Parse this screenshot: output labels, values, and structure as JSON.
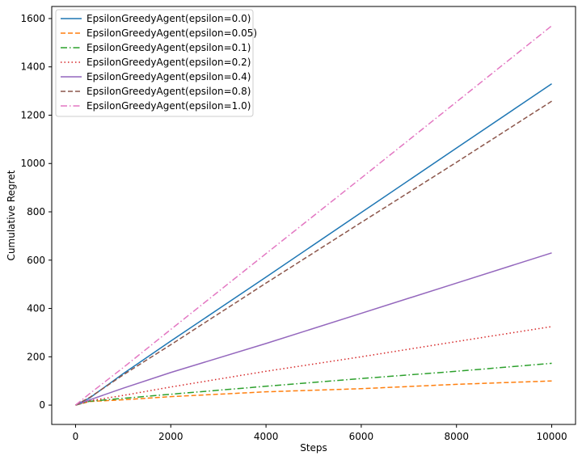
{
  "chart_data": {
    "type": "line",
    "title": "",
    "xlabel": "Steps",
    "ylabel": "Cumulative Regret",
    "xlim": [
      -500,
      10500
    ],
    "ylim": [
      -80,
      1650
    ],
    "x_ticks": [
      0,
      2000,
      4000,
      6000,
      8000,
      10000
    ],
    "y_ticks": [
      0,
      200,
      400,
      600,
      800,
      1000,
      1200,
      1400,
      1600
    ],
    "grid": false,
    "legend_position": "top-left",
    "series": [
      {
        "name": "EpsilonGreedyAgent(epsilon=0.0)",
        "color": "#1f77b4",
        "style": "solid",
        "x": [
          0,
          300,
          1000,
          2000,
          4000,
          6000,
          8000,
          10000
        ],
        "y": [
          0,
          30,
          130,
          265,
          530,
          797,
          1064,
          1330
        ]
      },
      {
        "name": "EpsilonGreedyAgent(epsilon=0.05)",
        "color": "#ff7f0e",
        "style": "dashed",
        "x": [
          0,
          300,
          1000,
          2000,
          4000,
          6000,
          8000,
          10000
        ],
        "y": [
          0,
          15,
          22,
          35,
          55,
          68,
          86,
          100
        ]
      },
      {
        "name": "EpsilonGreedyAgent(epsilon=0.1)",
        "color": "#2ca02c",
        "style": "dashdot",
        "x": [
          0,
          300,
          1000,
          2000,
          4000,
          6000,
          8000,
          10000
        ],
        "y": [
          0,
          16,
          28,
          45,
          78,
          110,
          140,
          173
        ]
      },
      {
        "name": "EpsilonGreedyAgent(epsilon=0.2)",
        "color": "#d62728",
        "style": "dotted",
        "x": [
          0,
          300,
          1000,
          2000,
          4000,
          6000,
          8000,
          10000
        ],
        "y": [
          0,
          18,
          40,
          75,
          140,
          200,
          263,
          325
        ]
      },
      {
        "name": "EpsilonGreedyAgent(epsilon=0.4)",
        "color": "#9467bd",
        "style": "solid",
        "x": [
          0,
          300,
          1000,
          2000,
          4000,
          6000,
          8000,
          10000
        ],
        "y": [
          0,
          22,
          70,
          135,
          255,
          380,
          505,
          630
        ]
      },
      {
        "name": "EpsilonGreedyAgent(epsilon=0.8)",
        "color": "#8c564b",
        "style": "dashed",
        "x": [
          0,
          300,
          1000,
          2000,
          4000,
          6000,
          8000,
          10000
        ],
        "y": [
          0,
          32,
          125,
          250,
          505,
          756,
          1005,
          1258
        ]
      },
      {
        "name": "EpsilonGreedyAgent(epsilon=1.0)",
        "color": "#e377c2",
        "style": "dashdot",
        "x": [
          0,
          300,
          1000,
          2000,
          4000,
          6000,
          8000,
          10000
        ],
        "y": [
          0,
          48,
          155,
          313,
          627,
          940,
          1255,
          1570
        ]
      }
    ]
  }
}
